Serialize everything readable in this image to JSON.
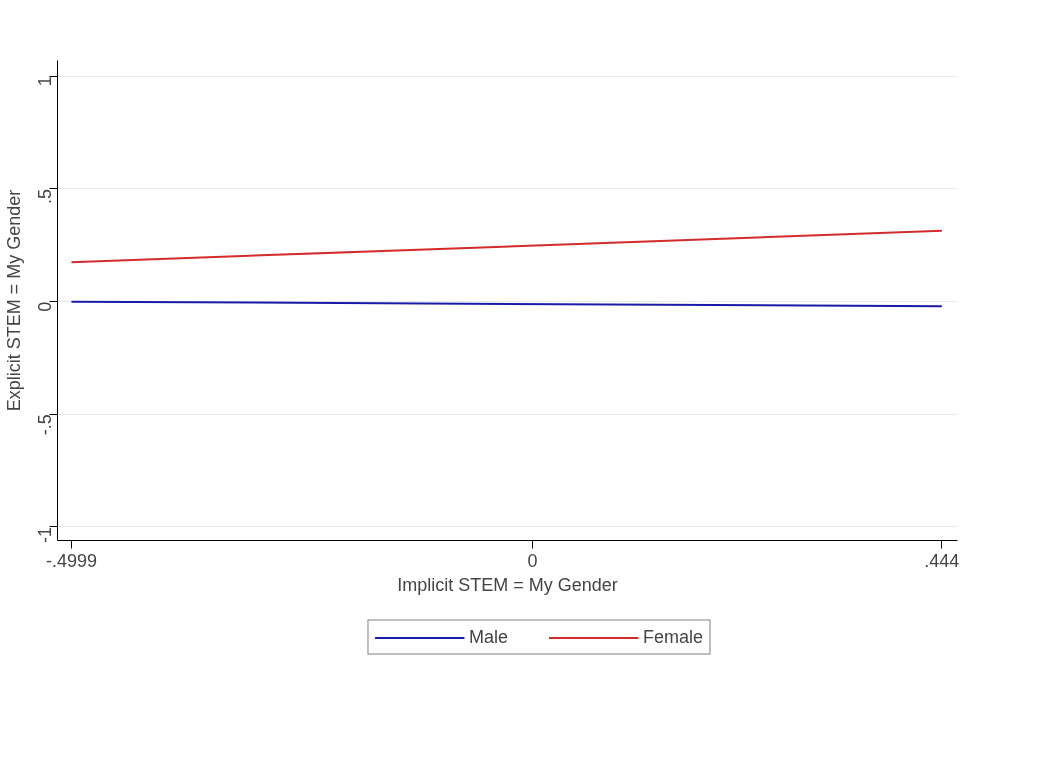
{
  "chart_data": {
    "type": "line",
    "xlabel": "Implicit STEM = My Gender",
    "ylabel": "Explicit STEM = My Gender",
    "x": [
      -0.4999,
      0.444
    ],
    "series": [
      {
        "name": "Male",
        "color": "#1a1aa8",
        "values": [
          0.0,
          -0.02
        ]
      },
      {
        "name": "Female",
        "color": "#d42c2c",
        "values": [
          0.175,
          0.314
        ]
      }
    ],
    "xlim": [
      -0.515,
      0.461
    ],
    "ylim": [
      -1.06,
      1.07
    ],
    "xticks": [
      {
        "value": -0.4999,
        "label": "-.4999"
      },
      0,
      {
        "value": 0.444,
        "label": ".444"
      }
    ],
    "yticks": [
      {
        "value": -1,
        "label": "-1"
      },
      {
        "value": -0.5,
        "label": "-.5"
      },
      0,
      {
        "value": 0.5,
        "label": ".5"
      },
      1
    ],
    "grid": "y",
    "legend": "bottom",
    "marker": "none",
    "line_style": "solid"
  }
}
